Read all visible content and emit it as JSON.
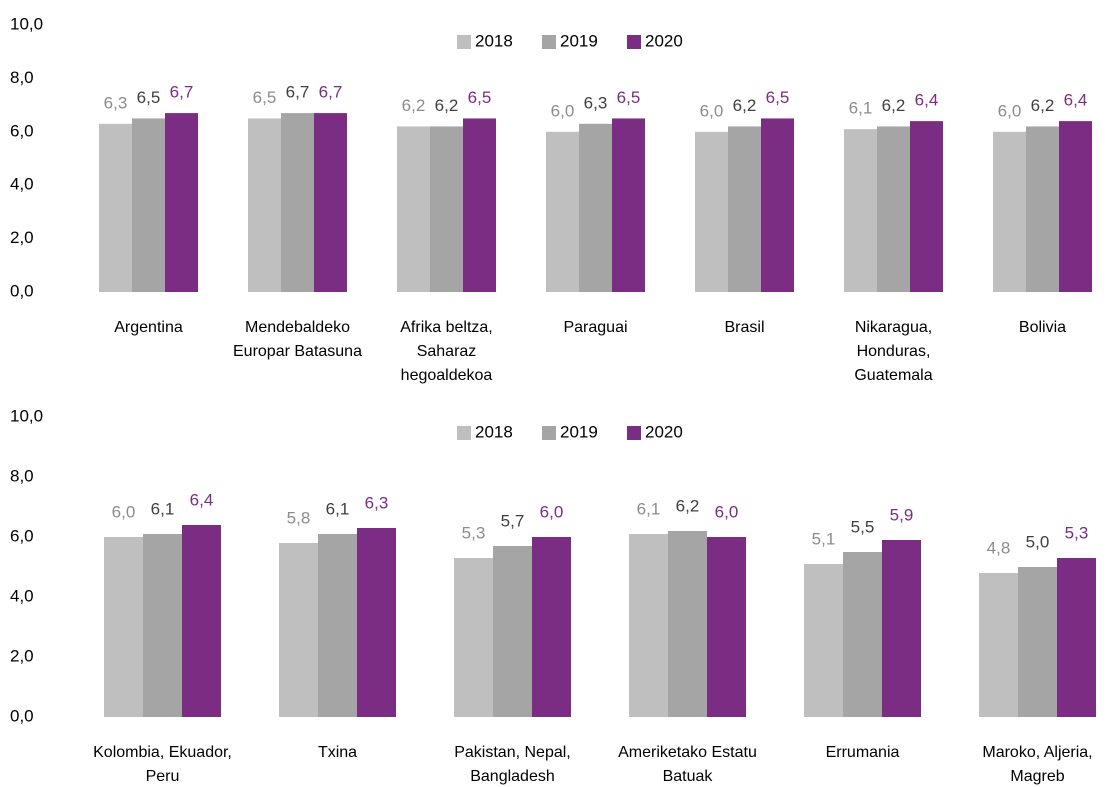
{
  "chart_data": [
    {
      "type": "bar",
      "categories": [
        "Argentina",
        "Mendebaldeko Europar Batasuna",
        "Afrika beltza, Saharaz hegoaldekoa",
        "Paraguai",
        "Brasil",
        "Nikaragua, Honduras, Guatemala",
        "Bolivia"
      ],
      "series": [
        {
          "name": "2018",
          "color": "#bfbfbf",
          "label_color": "#8c8c8c",
          "values": [
            6.3,
            6.5,
            6.2,
            6.0,
            6.0,
            6.1,
            6.0
          ],
          "value_labels": [
            "6,3",
            "6,5",
            "6,2",
            "6,0",
            "6,0",
            "6,1",
            "6,0"
          ]
        },
        {
          "name": "2019",
          "color": "#a5a5a5",
          "label_color": "#404040",
          "values": [
            6.5,
            6.7,
            6.2,
            6.3,
            6.2,
            6.2,
            6.2
          ],
          "value_labels": [
            "6,5",
            "6,7",
            "6,2",
            "6,3",
            "6,2",
            "6,2",
            "6,2"
          ]
        },
        {
          "name": "2020",
          "color": "#7b2c83",
          "label_color": "#7b2c83",
          "values": [
            6.7,
            6.7,
            6.5,
            6.5,
            6.5,
            6.4,
            6.4
          ],
          "value_labels": [
            "6,7",
            "6,7",
            "6,5",
            "6,5",
            "6,5",
            "6,4",
            "6,4"
          ]
        }
      ],
      "ylim": [
        0,
        10
      ],
      "yticks": [
        {
          "value": 0,
          "label": "0,0"
        },
        {
          "value": 2,
          "label": "2,0"
        },
        {
          "value": 4,
          "label": "4,0"
        },
        {
          "value": 6,
          "label": "6,0"
        },
        {
          "value": 8,
          "label": "8,0"
        },
        {
          "value": 10,
          "label": "10,0"
        }
      ],
      "legend": "top"
    },
    {
      "type": "bar",
      "categories": [
        "Kolombia, Ekuador, Peru",
        "Txina",
        "Pakistan, Nepal, Bangladesh",
        "Ameriketako Estatu Batuak",
        "Errumania",
        "Maroko, Aljeria, Magreb"
      ],
      "series": [
        {
          "name": "2018",
          "color": "#bfbfbf",
          "label_color": "#8c8c8c",
          "values": [
            6.0,
            5.8,
            5.3,
            6.1,
            5.1,
            4.8
          ],
          "value_labels": [
            "6,0",
            "5,8",
            "5,3",
            "6,1",
            "5,1",
            "4,8"
          ]
        },
        {
          "name": "2019",
          "color": "#a5a5a5",
          "label_color": "#404040",
          "values": [
            6.1,
            6.1,
            5.7,
            6.2,
            5.5,
            5.0
          ],
          "value_labels": [
            "6,1",
            "6,1",
            "5,7",
            "6,2",
            "5,5",
            "5,0"
          ]
        },
        {
          "name": "2020",
          "color": "#7b2c83",
          "label_color": "#7b2c83",
          "values": [
            6.4,
            6.3,
            6.0,
            6.0,
            5.9,
            5.3
          ],
          "value_labels": [
            "6,4",
            "6,3",
            "6,0",
            "6,0",
            "5,9",
            "5,3"
          ]
        }
      ],
      "ylim": [
        0,
        10
      ],
      "yticks": [
        {
          "value": 0,
          "label": "0,0"
        },
        {
          "value": 2,
          "label": "2,0"
        },
        {
          "value": 4,
          "label": "4,0"
        },
        {
          "value": 6,
          "label": "6,0"
        },
        {
          "value": 8,
          "label": "8,0"
        },
        {
          "value": 10,
          "label": "10,0"
        }
      ],
      "legend": "top"
    }
  ]
}
